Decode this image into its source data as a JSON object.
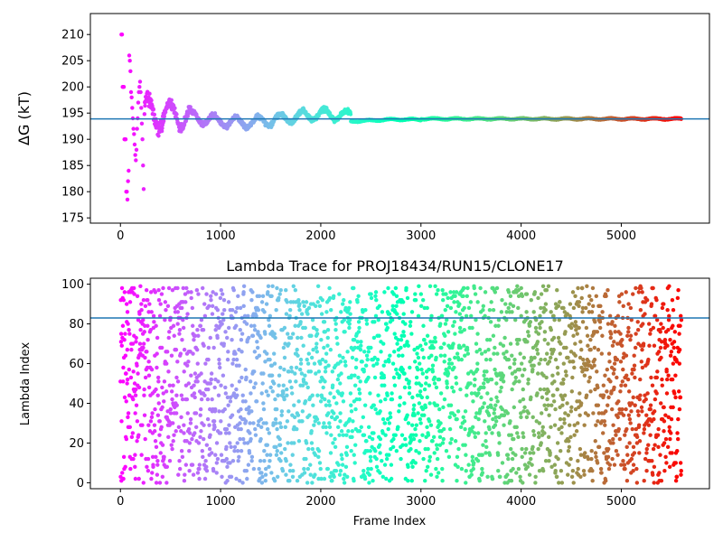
{
  "colors": {
    "refline": "#1f77b4",
    "colormap": "rainbow"
  },
  "chart_data": [
    {
      "type": "scatter",
      "title": "",
      "xlabel": "",
      "ylabel": "ΔG (kT)",
      "xlim": [
        -300,
        5880
      ],
      "ylim": [
        174,
        214
      ],
      "xticks": [
        0,
        1000,
        2000,
        3000,
        4000,
        5000
      ],
      "yticks": [
        175,
        180,
        185,
        190,
        195,
        200,
        205,
        210
      ],
      "reference_line_y": 193.9,
      "n_frames": 5600,
      "trace_description": "Running free-energy estimate: widely scattered 178–210 for first ~200 frames, oscillates 192–197 until ~2000, converges to ~193.9 after ~3000",
      "key_points": [
        {
          "x": 20,
          "y": 210
        },
        {
          "x": 40,
          "y": 210
        },
        {
          "x": 30,
          "y": 200
        },
        {
          "x": 20,
          "y": 190
        },
        {
          "x": 20,
          "y": 180
        },
        {
          "x": 60,
          "y": 178.5
        },
        {
          "x": 150,
          "y": 186
        },
        {
          "x": 500,
          "y": 196
        },
        {
          "x": 1000,
          "y": 194
        },
        {
          "x": 1500,
          "y": 195
        },
        {
          "x": 2000,
          "y": 195
        },
        {
          "x": 2500,
          "y": 193.7
        },
        {
          "x": 3000,
          "y": 194
        },
        {
          "x": 4000,
          "y": 193.9
        },
        {
          "x": 5600,
          "y": 194
        }
      ]
    },
    {
      "type": "scatter",
      "title": "Lambda Trace for PROJ18434/RUN15/CLONE17",
      "xlabel": "Frame Index",
      "ylabel": "Lambda Index",
      "xlim": [
        -300,
        5880
      ],
      "ylim": [
        -3,
        103
      ],
      "xticks": [
        0,
        1000,
        2000,
        3000,
        4000,
        5000
      ],
      "yticks": [
        0,
        20,
        40,
        60,
        80,
        100
      ],
      "reference_line_y": 83,
      "n_frames": 5600,
      "value_range": [
        0,
        99
      ],
      "trace_description": "Lambda index values scattered uniformly between 0 and 99 for every frame, colored by frame index with rainbow colormap"
    }
  ]
}
